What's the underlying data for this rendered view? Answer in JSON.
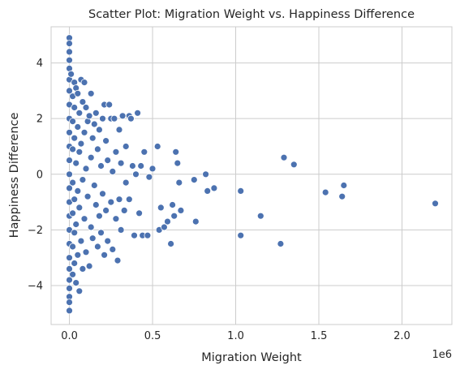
{
  "chart_data": {
    "type": "scatter",
    "title": "Scatter Plot: Migration Weight vs. Happiness Difference",
    "xlabel": "Migration Weight",
    "ylabel": "Happiness Difference",
    "x_offset_label": "1e6",
    "xlim": [
      -0.11,
      2.3
    ],
    "ylim": [
      -5.4,
      5.3
    ],
    "x_ticks": [
      0,
      0.5,
      1.0,
      1.5,
      2.0
    ],
    "x_tick_labels": [
      "0.0",
      "0.5",
      "1.0",
      "1.5",
      "2.0"
    ],
    "y_ticks": [
      -4,
      -2,
      0,
      2,
      4
    ],
    "y_tick_labels": [
      "−4",
      "−2",
      "0",
      "2",
      "4"
    ],
    "grid": true,
    "marker_color": "#4c72b0",
    "marker_edge_color": "#ffffff",
    "series": [
      {
        "name": "points",
        "x_units": "1e6",
        "points": [
          [
            0.0,
            4.9
          ],
          [
            0.0,
            4.7
          ],
          [
            0.0,
            4.4
          ],
          [
            0.0,
            4.1
          ],
          [
            0.0,
            3.8
          ],
          [
            0.0,
            3.4
          ],
          [
            0.0,
            3.0
          ],
          [
            0.0,
            2.5
          ],
          [
            0.0,
            2.0
          ],
          [
            0.0,
            1.5
          ],
          [
            0.0,
            1.0
          ],
          [
            0.0,
            0.5
          ],
          [
            0.0,
            0.0
          ],
          [
            0.0,
            -0.5
          ],
          [
            0.0,
            -1.0
          ],
          [
            0.0,
            -1.5
          ],
          [
            0.0,
            -2.0
          ],
          [
            0.0,
            -2.5
          ],
          [
            0.0,
            -3.0
          ],
          [
            0.0,
            -3.4
          ],
          [
            0.0,
            -3.8
          ],
          [
            0.0,
            -4.1
          ],
          [
            0.0,
            -4.4
          ],
          [
            0.0,
            -4.6
          ],
          [
            0.0,
            -4.9
          ],
          [
            0.01,
            3.6
          ],
          [
            0.02,
            2.8
          ],
          [
            0.02,
            1.9
          ],
          [
            0.02,
            0.9
          ],
          [
            0.02,
            -0.3
          ],
          [
            0.02,
            -1.4
          ],
          [
            0.02,
            -2.6
          ],
          [
            0.02,
            -3.6
          ],
          [
            0.03,
            3.3
          ],
          [
            0.03,
            2.4
          ],
          [
            0.03,
            1.3
          ],
          [
            0.03,
            -0.9
          ],
          [
            0.03,
            -2.1
          ],
          [
            0.03,
            -3.2
          ],
          [
            0.04,
            3.1
          ],
          [
            0.04,
            0.4
          ],
          [
            0.04,
            -1.8
          ],
          [
            0.04,
            -3.9
          ],
          [
            0.05,
            2.9
          ],
          [
            0.05,
            1.7
          ],
          [
            0.05,
            -0.6
          ],
          [
            0.05,
            -2.9
          ],
          [
            0.06,
            2.2
          ],
          [
            0.06,
            0.8
          ],
          [
            0.06,
            -1.2
          ],
          [
            0.06,
            -4.2
          ],
          [
            0.07,
            3.4
          ],
          [
            0.07,
            -2.4
          ],
          [
            0.07,
            1.1
          ],
          [
            0.08,
            2.6
          ],
          [
            0.08,
            -0.2
          ],
          [
            0.08,
            -3.4
          ],
          [
            0.09,
            3.3
          ],
          [
            0.09,
            1.5
          ],
          [
            0.09,
            -1.6
          ],
          [
            0.1,
            2.4
          ],
          [
            0.1,
            0.2
          ],
          [
            0.1,
            -2.8
          ],
          [
            0.11,
            1.9
          ],
          [
            0.11,
            -0.8
          ],
          [
            0.12,
            2.1
          ],
          [
            0.12,
            -3.3
          ],
          [
            0.13,
            2.9
          ],
          [
            0.13,
            0.6
          ],
          [
            0.13,
            -1.9
          ],
          [
            0.14,
            1.3
          ],
          [
            0.14,
            -2.3
          ],
          [
            0.15,
            1.8
          ],
          [
            0.15,
            -0.4
          ],
          [
            0.16,
            2.2
          ],
          [
            0.16,
            -1.1
          ],
          [
            0.17,
            0.9
          ],
          [
            0.17,
            -2.6
          ],
          [
            0.18,
            1.6
          ],
          [
            0.18,
            -1.5
          ],
          [
            0.19,
            0.3
          ],
          [
            0.19,
            -2.1
          ],
          [
            0.2,
            2.0
          ],
          [
            0.2,
            -0.7
          ],
          [
            0.21,
            2.5
          ],
          [
            0.21,
            -2.9
          ],
          [
            0.22,
            1.2
          ],
          [
            0.22,
            -1.3
          ],
          [
            0.23,
            0.5
          ],
          [
            0.23,
            -2.4
          ],
          [
            0.24,
            2.5
          ],
          [
            0.25,
            2.0
          ],
          [
            0.25,
            -1.0
          ],
          [
            0.26,
            0.1
          ],
          [
            0.26,
            -2.7
          ],
          [
            0.27,
            2.0
          ],
          [
            0.28,
            -1.6
          ],
          [
            0.28,
            0.8
          ],
          [
            0.29,
            -3.1
          ],
          [
            0.3,
            1.6
          ],
          [
            0.3,
            -0.9
          ],
          [
            0.31,
            0.4
          ],
          [
            0.31,
            -2.0
          ],
          [
            0.32,
            2.1
          ],
          [
            0.33,
            -1.3
          ],
          [
            0.34,
            1.0
          ],
          [
            0.34,
            -0.3
          ],
          [
            0.36,
            2.1
          ],
          [
            0.36,
            -0.9
          ],
          [
            0.37,
            2.0
          ],
          [
            0.38,
            0.3
          ],
          [
            0.39,
            -2.2
          ],
          [
            0.4,
            0.0
          ],
          [
            0.41,
            2.2
          ],
          [
            0.42,
            -1.4
          ],
          [
            0.43,
            0.3
          ],
          [
            0.44,
            -2.2
          ],
          [
            0.45,
            0.8
          ],
          [
            0.47,
            -2.2
          ],
          [
            0.48,
            -0.1
          ],
          [
            0.5,
            0.2
          ],
          [
            0.53,
            1.0
          ],
          [
            0.54,
            -2.0
          ],
          [
            0.55,
            -1.2
          ],
          [
            0.57,
            -1.9
          ],
          [
            0.59,
            -1.7
          ],
          [
            0.61,
            -2.5
          ],
          [
            0.62,
            -1.1
          ],
          [
            0.63,
            -1.5
          ],
          [
            0.64,
            0.8
          ],
          [
            0.65,
            0.4
          ],
          [
            0.66,
            -0.3
          ],
          [
            0.67,
            -1.3
          ],
          [
            0.75,
            -0.2
          ],
          [
            0.76,
            -1.7
          ],
          [
            0.82,
            0.0
          ],
          [
            0.83,
            -0.6
          ],
          [
            0.87,
            -0.5
          ],
          [
            1.03,
            -0.6
          ],
          [
            1.03,
            -2.2
          ],
          [
            1.15,
            -1.5
          ],
          [
            1.27,
            -2.5
          ],
          [
            1.29,
            0.6
          ],
          [
            1.35,
            0.35
          ],
          [
            1.54,
            -0.65
          ],
          [
            1.64,
            -0.8
          ],
          [
            1.65,
            -0.4
          ],
          [
            2.2,
            -1.05
          ]
        ]
      }
    ]
  }
}
